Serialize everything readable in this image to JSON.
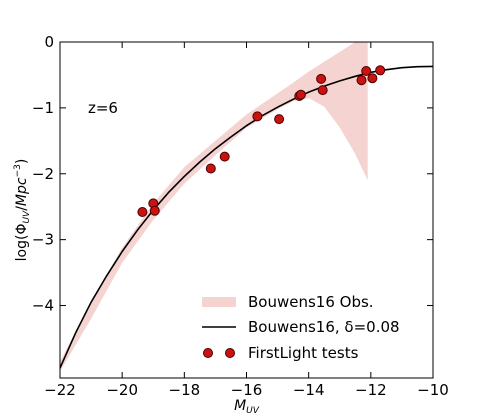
{
  "chart_data": {
    "type": "scatter",
    "title": "",
    "xlabel": "M_UV",
    "ylabel": "log(Φ_UV/Mpc^-3)",
    "xlim": [
      -22,
      -10
    ],
    "ylim": [
      -5.1,
      0
    ],
    "x_ticks": [
      -22,
      -20,
      -18,
      -16,
      -14,
      -12,
      -10
    ],
    "x_tick_labels": [
      "−22",
      "−20",
      "−18",
      "−16",
      "−14",
      "−12",
      "−10"
    ],
    "y_ticks": [
      0,
      -1,
      -2,
      -3,
      -4
    ],
    "y_tick_labels": [
      "0",
      "−1",
      "−2",
      "−3",
      "−4"
    ],
    "grid": false,
    "legend_position": "bottom-right",
    "annotation": "z=6",
    "colors": {
      "band": "#f4d3d0",
      "line": "#000000",
      "points": "#cc1111",
      "point_edge": "#4a0000"
    },
    "series": [
      {
        "name": "Bouwens16 Obs.",
        "kind": "band",
        "x": [
          -22,
          -21,
          -20,
          -19,
          -18,
          -17,
          -16,
          -15,
          -14.5,
          -14,
          -13.5,
          -13,
          -12.5,
          -12.1
        ],
        "upper": [
          -4.85,
          -3.95,
          -3.12,
          -2.45,
          -1.9,
          -1.5,
          -1.1,
          -0.78,
          -0.62,
          -0.45,
          -0.3,
          -0.15,
          0,
          0.05
        ],
        "lower": [
          -5.0,
          -4.2,
          -3.35,
          -2.7,
          -2.15,
          -1.72,
          -1.3,
          -1.02,
          -0.9,
          -0.85,
          -0.98,
          -1.3,
          -1.7,
          -2.1
        ]
      },
      {
        "name": "Bouwens16, δ=0.08",
        "kind": "line",
        "x": [
          -22,
          -21.5,
          -21,
          -20.5,
          -20,
          -19.5,
          -19,
          -18.5,
          -18,
          -17.5,
          -17,
          -16.5,
          -16,
          -15.5,
          -15,
          -14.5,
          -14,
          -13.5,
          -13,
          -12.5,
          -12,
          -11.5,
          -11,
          -10.5,
          -10
        ],
        "y": [
          -4.95,
          -4.42,
          -3.95,
          -3.55,
          -3.18,
          -2.85,
          -2.55,
          -2.28,
          -2.04,
          -1.82,
          -1.62,
          -1.44,
          -1.27,
          -1.12,
          -0.99,
          -0.87,
          -0.76,
          -0.67,
          -0.59,
          -0.52,
          -0.46,
          -0.42,
          -0.39,
          -0.375,
          -0.37
        ]
      },
      {
        "name": "FirstLight tests",
        "kind": "points",
        "x": [
          -19.35,
          -19.0,
          -18.95,
          -17.15,
          -16.7,
          -15.65,
          -14.95,
          -14.3,
          -14.25,
          -13.6,
          -13.55,
          -12.3,
          -12.15,
          -11.95,
          -11.7
        ],
        "y": [
          -2.58,
          -2.45,
          -2.56,
          -1.92,
          -1.74,
          -1.13,
          -1.17,
          -0.82,
          -0.8,
          -0.56,
          -0.73,
          -0.58,
          -0.44,
          -0.55,
          -0.43
        ]
      }
    ]
  }
}
